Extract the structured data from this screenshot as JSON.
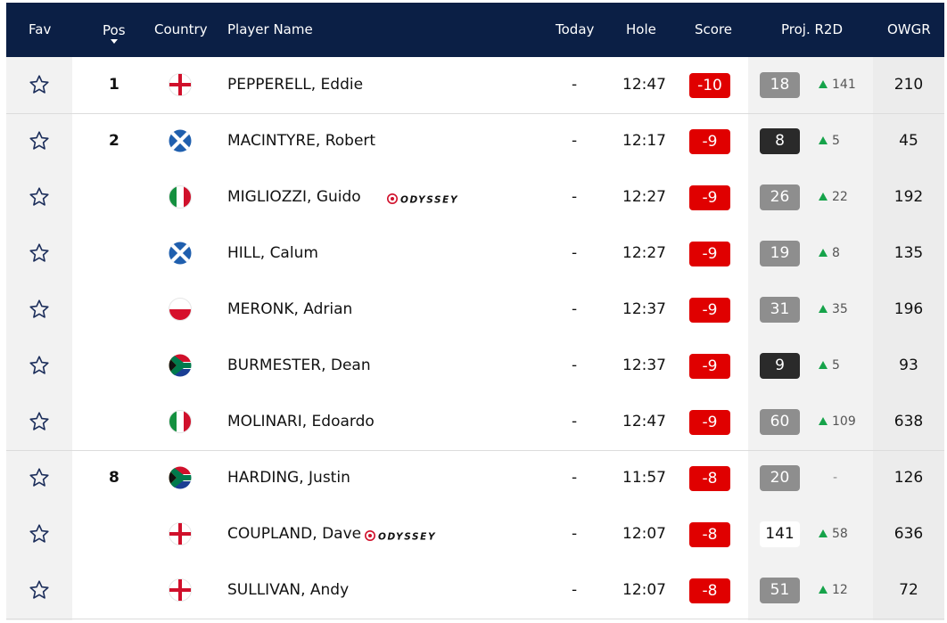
{
  "header": {
    "fav": "Fav",
    "pos": "Pos",
    "country": "Country",
    "player_name": "Player Name",
    "today": "Today",
    "hole": "Hole",
    "score": "Score",
    "proj_r2d": "Proj. R2D",
    "owgr": "OWGR"
  },
  "sponsor_text": "ODYSSEY",
  "colors": {
    "header_bg": "#0b1f45",
    "score_red": "#e00000",
    "up_arrow": "#16a34a",
    "r2d_grey": "#8e8e8e",
    "r2d_dark": "#2a2a2a"
  },
  "players": [
    {
      "pos": "1",
      "flag": "england",
      "last": "PEPPERELL",
      "first": "Eddie",
      "sponsor": false,
      "today": "-",
      "hole": "12:47",
      "score": "-10",
      "r2d": "18",
      "r2d_style": "grey",
      "move": "141",
      "move_dir": "up",
      "owgr": "210"
    },
    {
      "pos": "2",
      "flag": "scotland",
      "last": "MACINTYRE",
      "first": "Robert",
      "sponsor": false,
      "today": "-",
      "hole": "12:17",
      "score": "-9",
      "r2d": "8",
      "r2d_style": "dark",
      "move": "5",
      "move_dir": "up",
      "owgr": "45"
    },
    {
      "pos": "",
      "flag": "italy",
      "last": "MIGLIOZZI",
      "first": "Guido",
      "sponsor": true,
      "today": "-",
      "hole": "12:27",
      "score": "-9",
      "r2d": "26",
      "r2d_style": "grey",
      "move": "22",
      "move_dir": "up",
      "owgr": "192"
    },
    {
      "pos": "",
      "flag": "scotland",
      "last": "HILL",
      "first": "Calum",
      "sponsor": false,
      "today": "-",
      "hole": "12:27",
      "score": "-9",
      "r2d": "19",
      "r2d_style": "grey",
      "move": "8",
      "move_dir": "up",
      "owgr": "135"
    },
    {
      "pos": "",
      "flag": "poland",
      "last": "MERONK",
      "first": "Adrian",
      "sponsor": false,
      "today": "-",
      "hole": "12:37",
      "score": "-9",
      "r2d": "31",
      "r2d_style": "grey",
      "move": "35",
      "move_dir": "up",
      "owgr": "196"
    },
    {
      "pos": "",
      "flag": "south-africa",
      "last": "BURMESTER",
      "first": "Dean",
      "sponsor": false,
      "today": "-",
      "hole": "12:37",
      "score": "-9",
      "r2d": "9",
      "r2d_style": "dark",
      "move": "5",
      "move_dir": "up",
      "owgr": "93"
    },
    {
      "pos": "",
      "flag": "italy",
      "last": "MOLINARI",
      "first": "Edoardo",
      "sponsor": false,
      "today": "-",
      "hole": "12:47",
      "score": "-9",
      "r2d": "60",
      "r2d_style": "grey",
      "move": "109",
      "move_dir": "up",
      "owgr": "638"
    },
    {
      "pos": "8",
      "flag": "south-africa",
      "last": "HARDING",
      "first": "Justin",
      "sponsor": false,
      "today": "-",
      "hole": "11:57",
      "score": "-8",
      "r2d": "20",
      "r2d_style": "grey",
      "move": "-",
      "move_dir": "none",
      "owgr": "126"
    },
    {
      "pos": "",
      "flag": "england",
      "last": "COUPLAND",
      "first": "Dave",
      "sponsor": true,
      "today": "-",
      "hole": "12:07",
      "score": "-8",
      "r2d": "141",
      "r2d_style": "white",
      "move": "58",
      "move_dir": "up",
      "owgr": "636"
    },
    {
      "pos": "",
      "flag": "england",
      "last": "SULLIVAN",
      "first": "Andy",
      "sponsor": false,
      "today": "-",
      "hole": "12:07",
      "score": "-8",
      "r2d": "51",
      "r2d_style": "grey",
      "move": "12",
      "move_dir": "up",
      "owgr": "72"
    }
  ]
}
